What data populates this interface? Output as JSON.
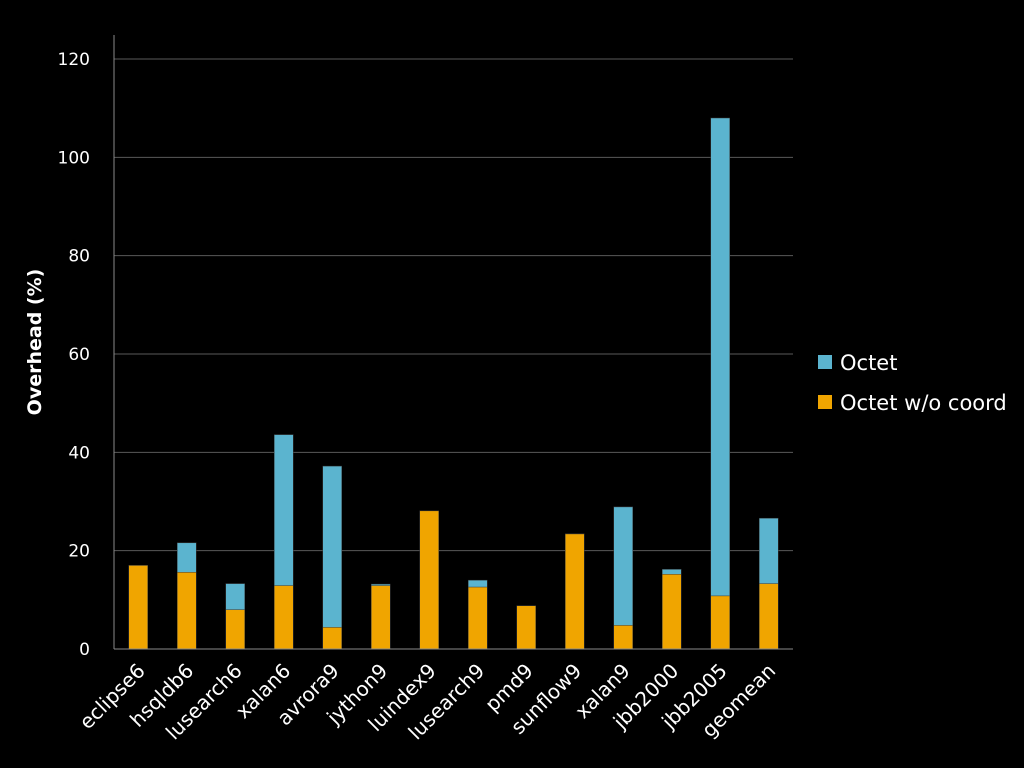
{
  "chart_data": {
    "type": "bar",
    "stacked": true,
    "title": "",
    "xlabel": "",
    "ylabel": "Overhead (%)",
    "ylim": [
      0,
      120
    ],
    "yticks": [
      0,
      20,
      40,
      60,
      80,
      100,
      120
    ],
    "grid": "horizontal",
    "legend_position": "right",
    "categories": [
      "eclipse6",
      "hsqldb6",
      "lusearch6",
      "xalan6",
      "avrora9",
      "jython9",
      "luindex9",
      "lusearch9",
      "pmd9",
      "sunflow9",
      "xalan9",
      "jbb2000",
      "jbb2005",
      "geomean"
    ],
    "series": [
      {
        "name": "Octet",
        "color": "#5BB4CF",
        "values": [
          17.0,
          21.6,
          13.3,
          43.6,
          37.2,
          13.2,
          0.0,
          14.0,
          8.8,
          23.4,
          28.9,
          16.2,
          108.0,
          26.6
        ]
      },
      {
        "name": "Octet w/o coord",
        "color": "#F0A500",
        "values": [
          17.0,
          15.6,
          8.0,
          12.9,
          4.4,
          12.9,
          28.1,
          12.6,
          8.8,
          23.4,
          4.8,
          15.2,
          10.8,
          13.3
        ]
      }
    ]
  }
}
